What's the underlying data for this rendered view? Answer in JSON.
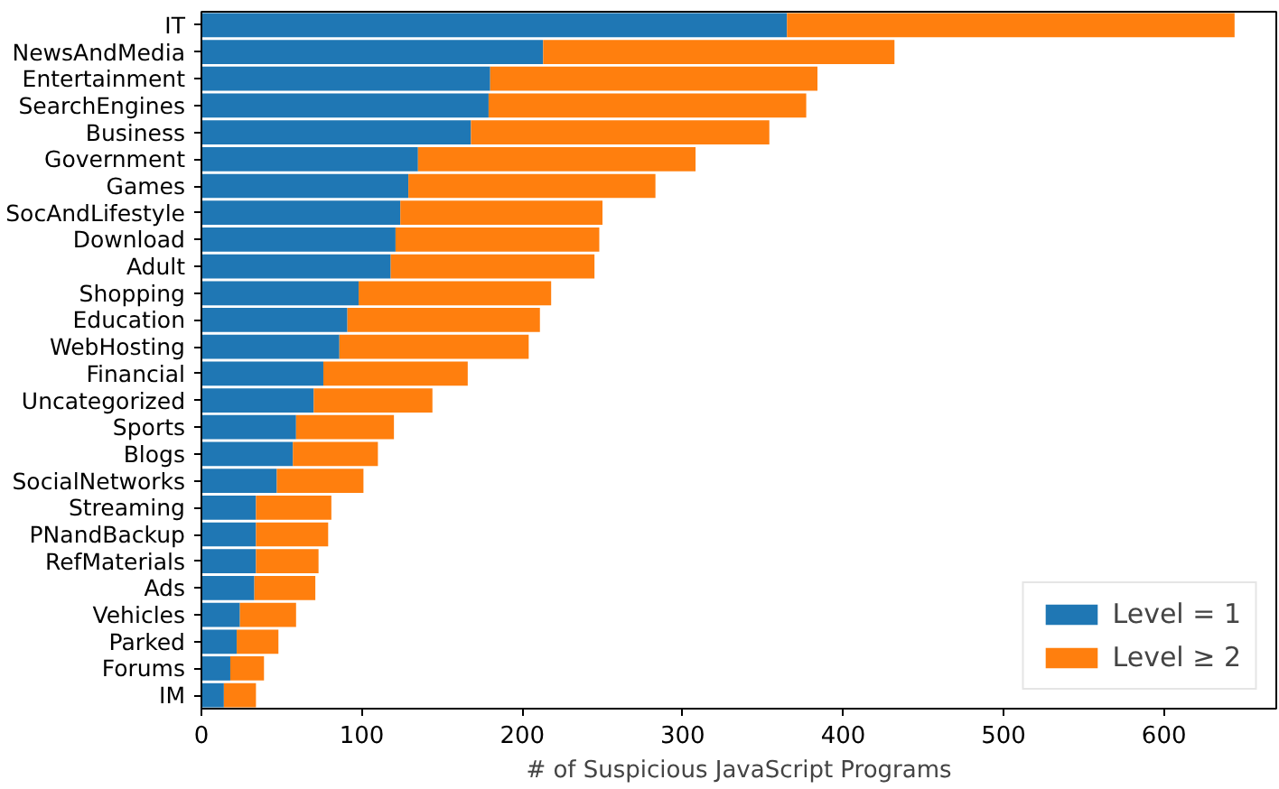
{
  "chart_data": {
    "type": "bar",
    "orientation": "horizontal",
    "stacked": true,
    "xlabel": "# of Suspicious JavaScript Programs",
    "categories": [
      "IT",
      "NewsAndMedia",
      "Entertainment",
      "SearchEngines",
      "Business",
      "Government",
      "Games",
      "SocAndLifestyle",
      "Download",
      "Adult",
      "Shopping",
      "Education",
      "WebHosting",
      "Financial",
      "Uncategorized",
      "Sports",
      "Blogs",
      "SocialNetworks",
      "Streaming",
      "PNandBackup",
      "RefMaterials",
      "Ads",
      "Vehicles",
      "Parked",
      "Forums",
      "IM"
    ],
    "series": [
      {
        "name": "Level = 1",
        "color": "#1f77b4",
        "values": [
          365,
          213,
          180,
          179,
          168,
          135,
          129,
          124,
          121,
          118,
          98,
          91,
          86,
          76,
          70,
          59,
          57,
          47,
          34,
          34,
          34,
          33,
          24,
          22,
          18,
          14
        ]
      },
      {
        "name": "Level ≥ 2",
        "color": "#ff7f0e",
        "values": [
          279,
          219,
          204,
          198,
          186,
          173,
          154,
          126,
          127,
          127,
          120,
          120,
          118,
          90,
          74,
          61,
          53,
          54,
          47,
          45,
          39,
          38,
          35,
          26,
          21,
          20
        ]
      }
    ],
    "xlim": [
      0,
      670
    ],
    "xticks": [
      0,
      100,
      200,
      300,
      400,
      500,
      600
    ],
    "grid": false,
    "legend": "bottom right"
  }
}
